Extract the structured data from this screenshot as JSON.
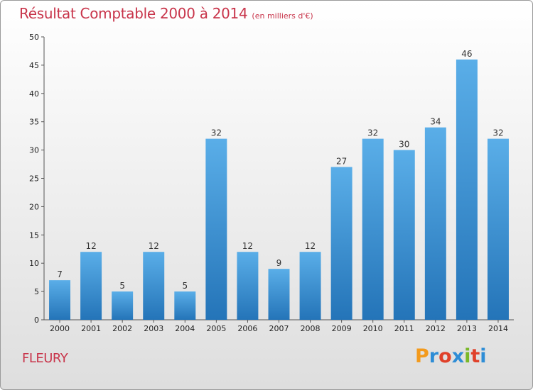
{
  "header": {
    "title": "Résultat Comptable 2000 à 2014",
    "subtitle": "(en milliers d'€)"
  },
  "footer": {
    "town": "FLEURY",
    "logo_letters": [
      "P",
      "r",
      "o",
      "x",
      "i",
      "t",
      "i"
    ],
    "logo_colors": [
      "#f39a1c",
      "#2e8dd6",
      "#e0412a",
      "#2e8dd6",
      "#7ab829",
      "#e0412a",
      "#2e8dd6"
    ]
  },
  "chart_data": {
    "type": "bar",
    "title": "Résultat Comptable 2000 à 2014",
    "subtitle": "(en milliers d'€)",
    "categories": [
      "2000",
      "2001",
      "2002",
      "2003",
      "2004",
      "2005",
      "2006",
      "2007",
      "2008",
      "2009",
      "2010",
      "2011",
      "2012",
      "2013",
      "2014"
    ],
    "values": [
      7,
      12,
      5,
      12,
      5,
      32,
      12,
      9,
      12,
      27,
      32,
      30,
      34,
      46,
      32
    ],
    "ylim": [
      0,
      50
    ],
    "yticks": [
      0,
      5,
      10,
      15,
      20,
      25,
      30,
      35,
      40,
      45,
      50
    ],
    "grid": false,
    "legend": "none",
    "bar_color_top": "#5aaee8",
    "bar_color_bottom": "#2474b8"
  }
}
